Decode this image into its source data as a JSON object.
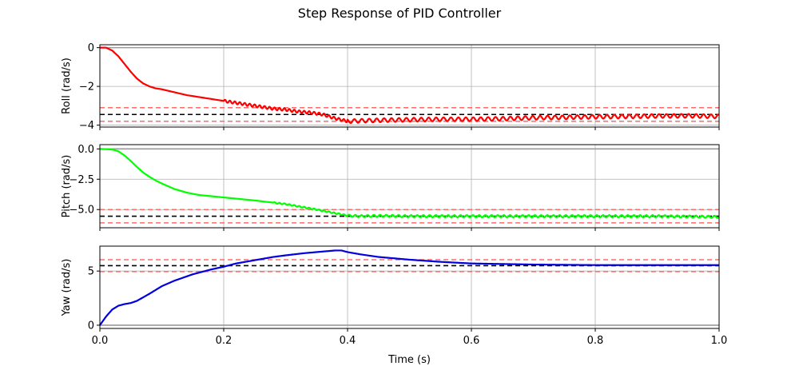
{
  "title": "Step Response of PID Controller",
  "chart_data": [
    {
      "type": "line",
      "ylabel": "Roll (rad/s)",
      "xlim": [
        0,
        1.0
      ],
      "ylim": [
        -4.1,
        0.15
      ],
      "yticks": [
        0,
        -2,
        -4
      ],
      "ytick_labels": [
        "0",
        "−2",
        "−4"
      ],
      "show_xtick_labels": false,
      "grid": true,
      "zero_line": true,
      "series_color": "#ff0000",
      "setpoint": -3.45,
      "band": [
        -3.1,
        -3.8
      ],
      "setpoint_color": "#000000",
      "band_color": "#ff6b6b",
      "series": [
        {
          "x": [
            0,
            0.01,
            0.02,
            0.03,
            0.04,
            0.05,
            0.06,
            0.07,
            0.08,
            0.09,
            0.1,
            0.12,
            0.14,
            0.16,
            0.18,
            0.2,
            0.22,
            0.25,
            0.28,
            0.3,
            0.32,
            0.34,
            0.36,
            0.38,
            0.4,
            0.42,
            0.45,
            0.5,
            0.55,
            0.6,
            0.65,
            0.7,
            0.75,
            0.8,
            0.85,
            0.9,
            0.95,
            1.0
          ],
          "y": [
            0,
            0,
            -0.15,
            -0.45,
            -0.85,
            -1.25,
            -1.6,
            -1.85,
            -2.0,
            -2.1,
            -2.15,
            -2.3,
            -2.45,
            -2.55,
            -2.65,
            -2.75,
            -2.85,
            -3.0,
            -3.15,
            -3.2,
            -3.3,
            -3.35,
            -3.45,
            -3.65,
            -3.8,
            -3.78,
            -3.75,
            -3.72,
            -3.7,
            -3.7,
            -3.67,
            -3.62,
            -3.6,
            -3.57,
            -3.55,
            -3.53,
            -3.52,
            -3.55
          ]
        }
      ],
      "ripple": [
        {
          "from": 0.2,
          "to": 0.4,
          "amp": 0.07,
          "period": 0.008
        },
        {
          "from": 0.4,
          "to": 1.0,
          "amp": 0.1,
          "period": 0.012
        }
      ]
    },
    {
      "type": "line",
      "ylabel": "Pitch (rad/s)",
      "xlim": [
        0,
        1.0
      ],
      "ylim": [
        -6.5,
        0.35
      ],
      "yticks": [
        0.0,
        -2.5,
        -5.0
      ],
      "ytick_labels": [
        "0.0",
        "−2.5",
        "−5.0"
      ],
      "show_xtick_labels": false,
      "grid": true,
      "zero_line": true,
      "series_color": "#00ff00",
      "setpoint": -5.55,
      "band": [
        -5.0,
        -6.1
      ],
      "setpoint_color": "#000000",
      "band_color": "#ff6b6b",
      "series": [
        {
          "x": [
            0,
            0.02,
            0.03,
            0.04,
            0.05,
            0.06,
            0.07,
            0.08,
            0.09,
            0.1,
            0.12,
            0.14,
            0.16,
            0.18,
            0.2,
            0.25,
            0.3,
            0.35,
            0.38,
            0.4,
            0.42,
            0.45,
            0.5,
            0.6,
            0.7,
            0.8,
            0.9,
            1.0
          ],
          "y": [
            0,
            -0.05,
            -0.2,
            -0.55,
            -1.0,
            -1.5,
            -1.95,
            -2.3,
            -2.6,
            -2.85,
            -3.3,
            -3.6,
            -3.8,
            -3.9,
            -4.0,
            -4.25,
            -4.55,
            -5.0,
            -5.3,
            -5.5,
            -5.55,
            -5.52,
            -5.55,
            -5.55,
            -5.55,
            -5.55,
            -5.55,
            -5.6
          ]
        }
      ],
      "ripple": [
        {
          "from": 0.28,
          "to": 0.4,
          "amp": 0.05,
          "period": 0.008
        },
        {
          "from": 0.4,
          "to": 1.0,
          "amp": 0.09,
          "period": 0.01
        }
      ]
    },
    {
      "type": "line",
      "ylabel": "Yaw (rad/s)",
      "xlim": [
        0,
        1.0
      ],
      "xlabel": "Time (s)",
      "ylim": [
        -0.3,
        7.3
      ],
      "yticks": [
        5,
        0
      ],
      "ytick_labels": [
        "5",
        "0"
      ],
      "xticks": [
        0.0,
        0.2,
        0.4,
        0.6,
        0.8,
        1.0
      ],
      "xtick_labels": [
        "0.0",
        "0.2",
        "0.4",
        "0.6",
        "0.8",
        "1.0"
      ],
      "show_xtick_labels": true,
      "grid": true,
      "zero_line": true,
      "series_color": "#0000e0",
      "setpoint": 5.5,
      "band": [
        6.05,
        4.95
      ],
      "setpoint_color": "#000000",
      "band_color": "#ff6b6b",
      "series": [
        {
          "x": [
            0,
            0.01,
            0.02,
            0.03,
            0.04,
            0.05,
            0.06,
            0.08,
            0.1,
            0.12,
            0.15,
            0.18,
            0.2,
            0.22,
            0.25,
            0.28,
            0.3,
            0.33,
            0.36,
            0.38,
            0.39,
            0.4,
            0.42,
            0.45,
            0.5,
            0.55,
            0.6,
            0.7,
            0.8,
            0.9,
            1.0
          ],
          "y": [
            0,
            0.8,
            1.45,
            1.8,
            1.95,
            2.05,
            2.25,
            2.9,
            3.6,
            4.1,
            4.7,
            5.15,
            5.4,
            5.7,
            6.0,
            6.3,
            6.45,
            6.65,
            6.8,
            6.9,
            6.9,
            6.75,
            6.55,
            6.3,
            6.05,
            5.85,
            5.7,
            5.6,
            5.55,
            5.55,
            5.55
          ]
        }
      ],
      "ripple": []
    }
  ]
}
